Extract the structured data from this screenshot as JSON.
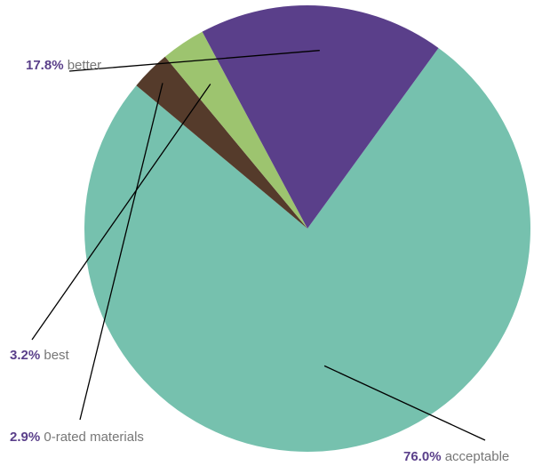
{
  "chart_data": {
    "type": "pie",
    "slices": [
      {
        "value": 76.0,
        "pct_label": "76.0%",
        "name": "acceptable",
        "color": "#76c1ae"
      },
      {
        "value": 2.9,
        "pct_label": "2.9%",
        "name": "0-rated materials",
        "color": "#553b2b"
      },
      {
        "value": 3.2,
        "pct_label": "3.2%",
        "name": "best",
        "color": "#9dc46f"
      },
      {
        "value": 17.8,
        "pct_label": "17.8%",
        "name": "better",
        "color": "#5a3f8a"
      }
    ]
  }
}
